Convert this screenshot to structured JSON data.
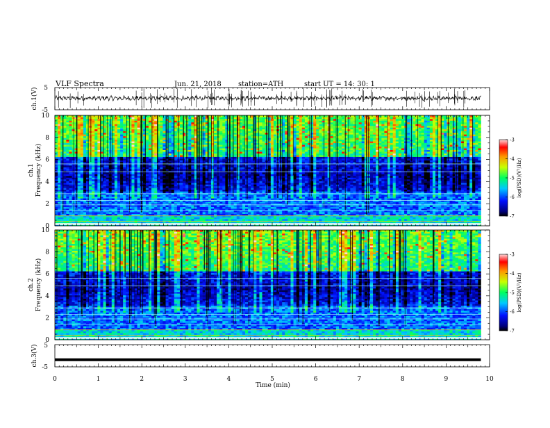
{
  "header": {
    "title": "VLF  Spectra",
    "date": "Jun. 21, 2018",
    "station": "station=ATH",
    "start_ut": "start  UT  =   14: 30: 1"
  },
  "chart_data": [
    {
      "type": "line",
      "name": "ch1-voltage",
      "ylabel": "ch.1(V)",
      "xlim": [
        0,
        10
      ],
      "ylim": [
        -5,
        5
      ],
      "yticks": [
        "5",
        "-5"
      ],
      "baseline_mean": 0.2,
      "x_end": 9.8
    },
    {
      "type": "heatmap",
      "name": "ch1-spectrogram",
      "ylabel": "ch.1\nFrequency  (kHz)",
      "ylabel_top": "ch.1",
      "ylabel_bottom": "Frequency  (kHz)",
      "xlim": [
        0,
        10
      ],
      "ylim": [
        0,
        10
      ],
      "yticks": [
        "0",
        "2",
        "4",
        "6",
        "8",
        "10"
      ],
      "x_end": 9.8,
      "colorbar": {
        "label": "log(PSD)(V²/Hz)",
        "range": [
          -7,
          -3
        ],
        "ticks": [
          "-3",
          "-4",
          "-5",
          "-6",
          "-7"
        ]
      }
    },
    {
      "type": "heatmap",
      "name": "ch2-spectrogram",
      "ylabel": "ch.2\nFrequency  (kHz)",
      "ylabel_top": "ch.2",
      "ylabel_bottom": "Frequency  (kHz)",
      "xlim": [
        0,
        10
      ],
      "ylim": [
        0,
        10
      ],
      "yticks": [
        "0",
        "2",
        "4",
        "6",
        "8",
        "10"
      ],
      "x_end": 9.8,
      "colorbar": {
        "label": "log(PSD)(V²/Hz)",
        "range": [
          -7,
          -3
        ],
        "ticks": [
          "-3",
          "-4",
          "-5",
          "-6",
          "-7"
        ]
      }
    },
    {
      "type": "line",
      "name": "ch3-voltage",
      "ylabel": "ch.3(V)",
      "xlim": [
        0,
        10
      ],
      "ylim": [
        -5,
        5
      ],
      "yticks": [
        "5",
        "-5"
      ],
      "baseline_mean": -1.8,
      "x_end": 9.8
    }
  ],
  "xaxis": {
    "label": "Time  (min)",
    "ticks": [
      "0",
      "1",
      "2",
      "3",
      "4",
      "5",
      "6",
      "7",
      "8",
      "9",
      "10"
    ]
  }
}
